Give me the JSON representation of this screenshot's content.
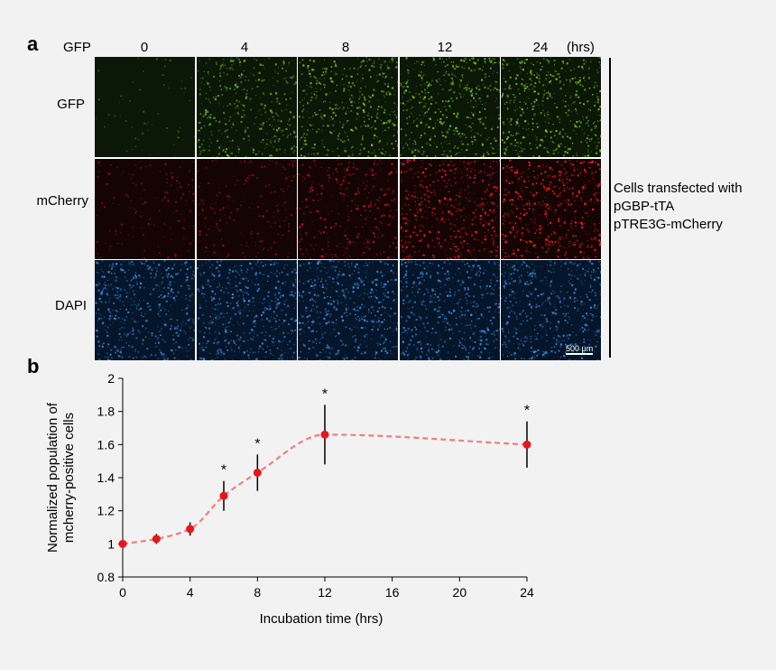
{
  "panel_a": {
    "letter": "a",
    "corner_label": "GFP",
    "time_labels": [
      "0",
      "4",
      "8",
      "12",
      "24"
    ],
    "time_unit": "(hrs)",
    "rows": [
      {
        "label": "GFP",
        "color": "#7ecb2a",
        "bg": "#0b1707",
        "intensities": [
          0.04,
          0.7,
          0.85,
          0.9,
          0.95
        ]
      },
      {
        "label": "mCherry",
        "color": "#ff1f1f",
        "bg": "#150404",
        "intensities": [
          0.25,
          0.3,
          0.6,
          0.9,
          1.0
        ]
      },
      {
        "label": "DAPI",
        "color": "#3a8fe6",
        "bg": "#06162a",
        "intensities": [
          0.95,
          0.95,
          0.95,
          0.95,
          0.95
        ]
      }
    ],
    "side_label_lines": [
      "Cells transfected with",
      "pGBP-tTA",
      "pTRE3G-mCherry"
    ],
    "scalebar_label": "500 μm"
  },
  "panel_b": {
    "letter": "b"
  },
  "chart_data": {
    "type": "line",
    "title": "",
    "xlabel": "Incubation time (hrs)",
    "ylabel_lines": [
      "Normalized population of",
      "mcherry-positive cells"
    ],
    "xlim": [
      0,
      24
    ],
    "ylim": [
      0.8,
      2
    ],
    "xticks": [
      0,
      4,
      8,
      12,
      16,
      20,
      24
    ],
    "yticks": [
      0.8,
      1,
      1.2,
      1.4,
      1.6,
      1.8,
      2
    ],
    "ytick_labels": [
      "0.8",
      "1",
      "1.2",
      "1.4",
      "1.6",
      "1.8",
      "2"
    ],
    "grid": false,
    "point_color": "#e8151b",
    "line_color": "#f07e7e",
    "series": [
      {
        "x": [
          0,
          2,
          4,
          6,
          8,
          12,
          24
        ],
        "y": [
          1.0,
          1.03,
          1.09,
          1.29,
          1.43,
          1.66,
          1.6
        ],
        "error": [
          0.0,
          0.03,
          0.04,
          0.09,
          0.11,
          0.18,
          0.14
        ],
        "significant": [
          false,
          false,
          false,
          true,
          true,
          true,
          true
        ]
      }
    ],
    "significance_marker": "*"
  }
}
